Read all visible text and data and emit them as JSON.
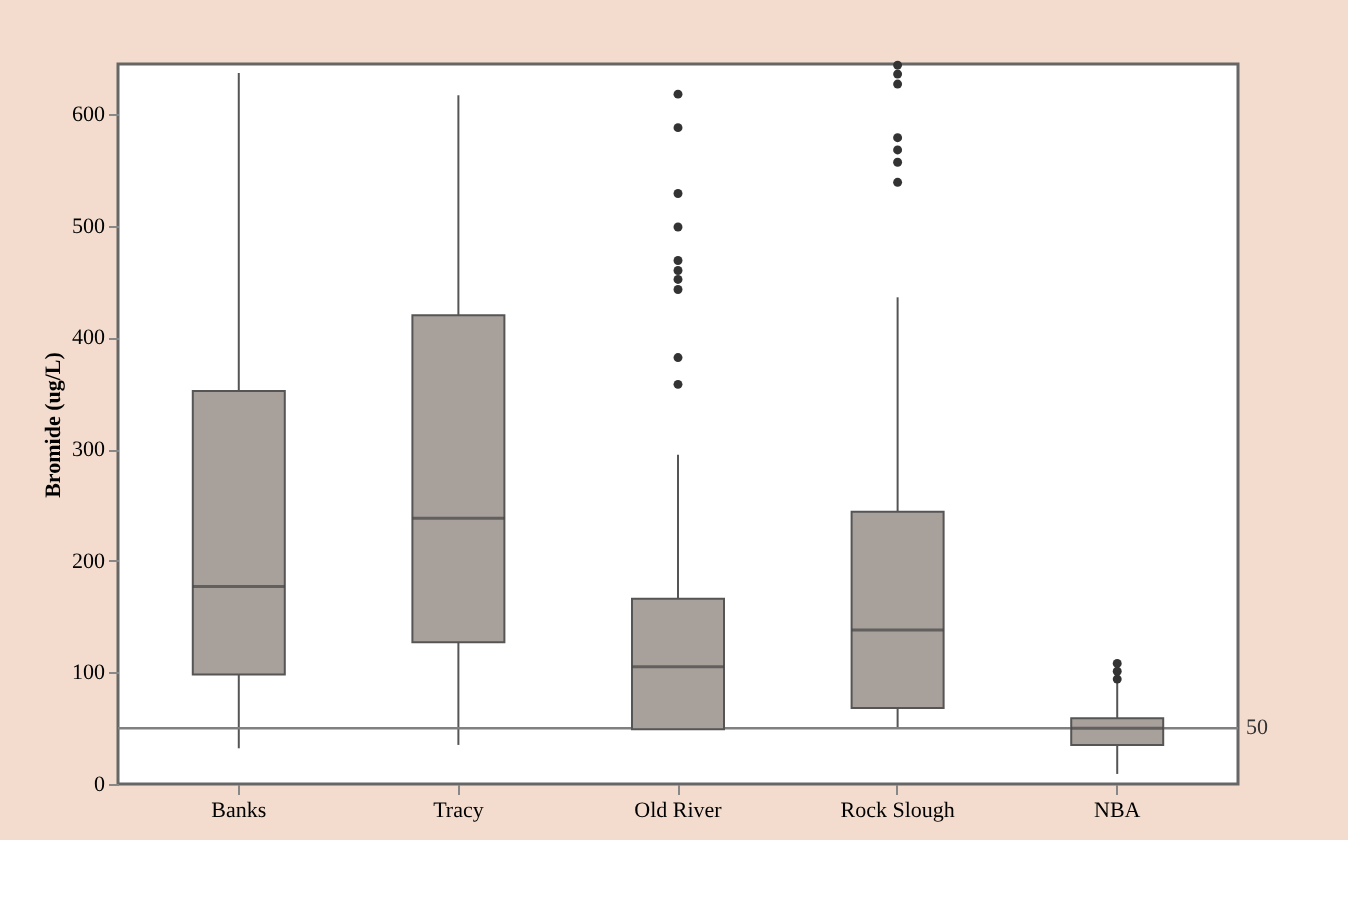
{
  "chart_data": {
    "type": "box",
    "ylabel": "Bromide (ug/L)",
    "categories": [
      "Banks",
      "Tracy",
      "Old River",
      "Rock Slough",
      "NBA"
    ],
    "color": "#a8a09b",
    "boxes": [
      {
        "low": 32,
        "q1": 98,
        "median": 177,
        "q3": 352,
        "high": 637
      },
      {
        "low": 35,
        "q1": 127,
        "median": 238,
        "q3": 420,
        "high": 617
      },
      {
        "low": 49,
        "q1": 49,
        "median": 105,
        "q3": 166,
        "high": 295,
        "outliers": [
          618,
          588,
          529,
          499,
          469,
          460,
          452,
          443,
          382,
          358
        ]
      },
      {
        "low": 51,
        "q1": 68,
        "median": 138,
        "q3": 244,
        "high": 436,
        "outliers": [
          644,
          636,
          627,
          579,
          568,
          557,
          539
        ]
      },
      {
        "low": 9,
        "q1": 35,
        "median": 50,
        "q3": 59,
        "high": 91,
        "outliers": [
          94,
          101,
          108
        ]
      }
    ],
    "ylim": [
      0,
      645
    ],
    "yticks": [
      0,
      100,
      200,
      300,
      400,
      500,
      600
    ],
    "ref_lines": [
      {
        "axis": "y",
        "value": 50,
        "label": "50",
        "color": "#808080"
      }
    ]
  }
}
